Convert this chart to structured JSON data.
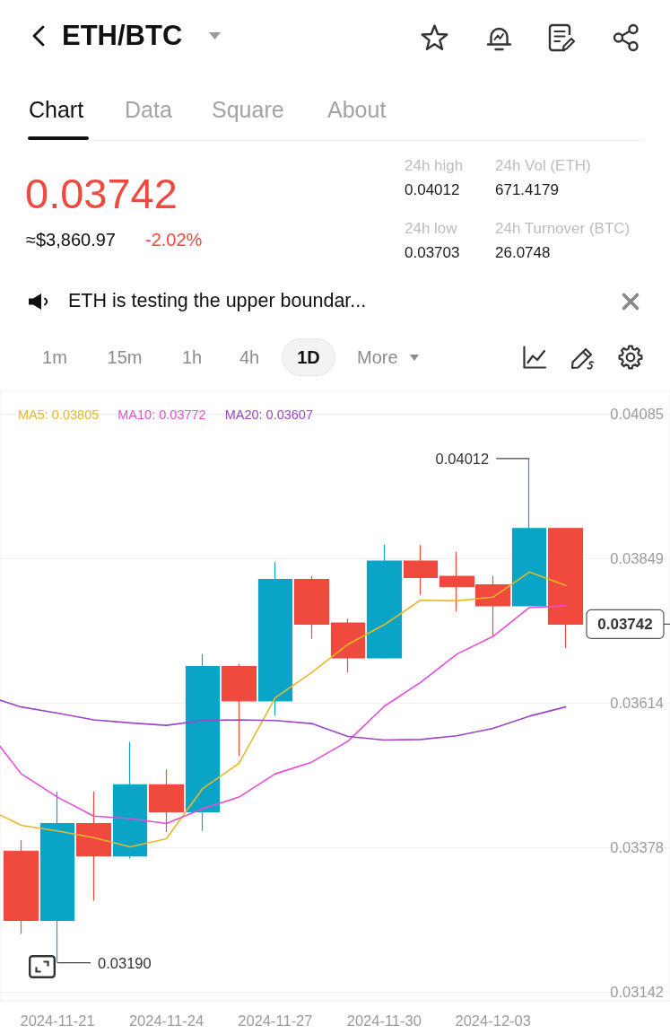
{
  "chart_data": {
    "type": "candlestick",
    "title": "ETH/BTC",
    "x": [
      "2024-11-20",
      "2024-11-21",
      "2024-11-22",
      "2024-11-23",
      "2024-11-24",
      "2024-11-25",
      "2024-11-26",
      "2024-11-27",
      "2024-11-28",
      "2024-11-29",
      "2024-11-30",
      "2024-12-01",
      "2024-12-02",
      "2024-12-03",
      "2024-12-04",
      "2024-12-05"
    ],
    "ohlc": [
      [
        0.03372,
        0.0339,
        0.03237,
        0.03259
      ],
      [
        0.03259,
        0.03469,
        0.0319,
        0.03417
      ],
      [
        0.03417,
        0.03469,
        0.03291,
        0.03364
      ],
      [
        0.03364,
        0.0355,
        0.0336,
        0.0348
      ],
      [
        0.0348,
        0.03505,
        0.03403,
        0.03436
      ],
      [
        0.03436,
        0.03693,
        0.03405,
        0.03673
      ],
      [
        0.03673,
        0.03677,
        0.03527,
        0.03617
      ],
      [
        0.03617,
        0.03843,
        0.03593,
        0.03815
      ],
      [
        0.03815,
        0.0382,
        0.03718,
        0.03742
      ],
      [
        0.03744,
        0.03751,
        0.03663,
        0.03687
      ],
      [
        0.03687,
        0.03872,
        0.03686,
        0.03845
      ],
      [
        0.03845,
        0.03871,
        0.0379,
        0.03818
      ],
      [
        0.0382,
        0.0386,
        0.03763,
        0.03803
      ],
      [
        0.03806,
        0.03821,
        0.03723,
        0.03772
      ],
      [
        0.03772,
        0.04012,
        0.03772,
        0.03898
      ],
      [
        0.03898,
        0.03898,
        0.03703,
        0.03742
      ]
    ],
    "colors": [
      "#f0493e",
      "#0aa5c6",
      "#f0493e",
      "#0aa5c6",
      "#f0493e",
      "#0aa5c6",
      "#f0493e",
      "#0aa5c6",
      "#f0493e",
      "#f0493e",
      "#0aa5c6",
      "#f0493e",
      "#f0493e",
      "#f0493e",
      "#0aa5c6",
      "#f0493e"
    ],
    "series": [
      {
        "name": "MA5: 0.03805",
        "type": "line",
        "color": "#e8b828",
        "x": [
          "2024-11-19T10:00",
          "2024-11-20",
          "2024-11-21",
          "2024-11-22",
          "2024-11-23",
          "2024-11-24",
          "2024-11-25",
          "2024-11-26",
          "2024-11-27",
          "2024-11-28",
          "2024-11-29",
          "2024-11-30",
          "2024-12-01",
          "2024-12-02",
          "2024-12-03",
          "2024-12-04",
          "2024-12-05"
        ],
        "values": [
          0.03431,
          0.03414,
          0.03405,
          0.03394,
          0.03379,
          0.03392,
          0.03474,
          0.03515,
          0.03622,
          0.03663,
          0.03709,
          0.03741,
          0.03781,
          0.0378,
          0.03786,
          0.03827,
          0.03805
        ]
      },
      {
        "name": "MA10: 0.03772",
        "type": "line",
        "color": "#ea4bd6",
        "x": [
          "2024-11-19T10:00",
          "2024-11-20",
          "2024-11-21",
          "2024-11-22",
          "2024-11-23",
          "2024-11-24",
          "2024-11-25",
          "2024-11-26",
          "2024-11-27",
          "2024-11-28",
          "2024-11-29",
          "2024-11-30",
          "2024-12-01",
          "2024-12-02",
          "2024-12-03",
          "2024-12-04",
          "2024-12-05"
        ],
        "values": [
          0.03543,
          0.03498,
          0.0346,
          0.03429,
          0.03425,
          0.03417,
          0.03441,
          0.0346,
          0.03498,
          0.03517,
          0.03551,
          0.03608,
          0.03647,
          0.03693,
          0.03722,
          0.03769,
          0.03772
        ]
      },
      {
        "name": "MA20: 0.03607",
        "type": "line",
        "color": "#9b45c8",
        "x": [
          "2024-11-19T10:00",
          "2024-11-20",
          "2024-11-21",
          "2024-11-22",
          "2024-11-23",
          "2024-11-24",
          "2024-11-25",
          "2024-11-26",
          "2024-11-27",
          "2024-11-28",
          "2024-11-29",
          "2024-11-30",
          "2024-12-01",
          "2024-12-02",
          "2024-12-03",
          "2024-12-04",
          "2024-12-05"
        ],
        "values": [
          0.03618,
          0.03607,
          0.03597,
          0.03586,
          0.03581,
          0.03577,
          0.03585,
          0.03586,
          0.03585,
          0.0358,
          0.03559,
          0.03553,
          0.03554,
          0.0356,
          0.03572,
          0.03592,
          0.03607
        ]
      }
    ],
    "xlim": [
      "2024-11-19T10:00",
      "2024-12-07T21:00"
    ],
    "xticks": [
      "2024-11-21",
      "2024-11-24",
      "2024-11-27",
      "2024-11-30",
      "2024-12-03"
    ],
    "ylim": [
      0.03128,
      0.04123
    ],
    "yticks": [
      0.03142,
      0.03378,
      0.03614,
      0.03849,
      0.04085
    ],
    "grid": "y",
    "legend": "top left",
    "marker": "none",
    "annotations": [
      "Chart",
      "Data",
      "Square",
      "About",
      "0.03742",
      "≈$3,860.97",
      "-2.02%",
      "24h high",
      "0.04012",
      "24h Vol (ETH)",
      "671.4179",
      "24h low",
      "0.03703",
      "24h Turnover (BTC)",
      "26.0748",
      "ETH is testing the upper boundar...",
      "1m",
      "15m",
      "1h",
      "4h",
      "1D",
      "More",
      {
        "text": "0.04012",
        "x": "2024-12-04",
        "y": 0.04012
      },
      {
        "text": "0.03190",
        "x": "2024-11-21",
        "y": 0.0319
      },
      {
        "text": "0.03742",
        "x": "2024-12-05",
        "y": 0.03742
      }
    ]
  }
}
